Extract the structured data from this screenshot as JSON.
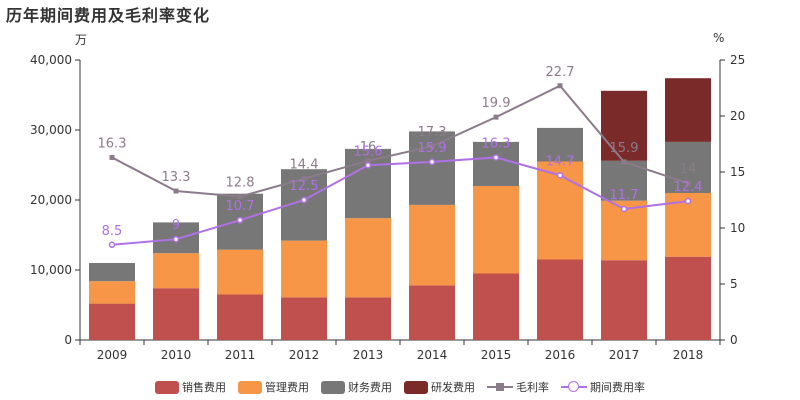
{
  "title": "历年期间费用及毛利率变化",
  "units": {
    "left": "万",
    "right": "%"
  },
  "legend": {
    "sales": "销售费用",
    "admin": "管理费用",
    "finance": "财务费用",
    "rd": "研发费用",
    "gross": "毛利率",
    "period": "期间费用率"
  },
  "colors": {
    "sales": "#c0504d",
    "admin": "#f79646",
    "finance": "#777777",
    "rd": "#7b2a2a",
    "gross": "#8c7b8b",
    "period": "#b070e6"
  },
  "chart_data": {
    "type": "bar",
    "stacked": true,
    "categories": [
      "2009",
      "2010",
      "2011",
      "2012",
      "2013",
      "2014",
      "2015",
      "2016",
      "2017",
      "2018"
    ],
    "ylim_left": [
      0,
      40000
    ],
    "yticks_left": [
      0,
      10000,
      20000,
      30000,
      40000
    ],
    "ytick_labels_left": [
      "0",
      "10,000",
      "20,000",
      "30,000",
      "40,000"
    ],
    "ylim_right": [
      0,
      25
    ],
    "yticks_right": [
      0,
      5,
      10,
      15,
      20,
      25
    ],
    "series": [
      {
        "name": "销售费用",
        "key": "sales",
        "values": [
          5200,
          7400,
          6500,
          6100,
          6100,
          7800,
          9500,
          11500,
          11400,
          11900
        ]
      },
      {
        "name": "管理费用",
        "key": "admin",
        "values": [
          3200,
          5000,
          6400,
          8100,
          11300,
          11500,
          12500,
          14000,
          8500,
          9100
        ]
      },
      {
        "name": "财务费用",
        "key": "finance",
        "values": [
          2600,
          4400,
          8000,
          10200,
          9900,
          10500,
          6300,
          4800,
          5700,
          7300
        ]
      },
      {
        "name": "研发费用",
        "key": "rd",
        "values": [
          0,
          0,
          0,
          0,
          0,
          0,
          0,
          0,
          10000,
          9100
        ]
      }
    ],
    "lines": [
      {
        "name": "毛利率",
        "key": "gross",
        "axis": "right",
        "marker": "square",
        "values": [
          16.3,
          13.3,
          12.8,
          14.4,
          16,
          17.3,
          19.9,
          22.7,
          15.9,
          14
        ],
        "labels": [
          "16.3",
          "13.3",
          "12.8",
          "14.4",
          "16",
          "17.3",
          "19.9",
          "22.7",
          "15.9",
          "14"
        ]
      },
      {
        "name": "期间费用率",
        "key": "period",
        "axis": "right",
        "marker": "circle",
        "values": [
          8.5,
          9,
          10.7,
          12.5,
          15.6,
          15.9,
          16.3,
          14.7,
          11.7,
          12.4
        ],
        "labels": [
          "8.5",
          "9",
          "10.7",
          "12.5",
          "15.6",
          "15.9",
          "16.3",
          "14.7",
          "11.7",
          "12.4"
        ]
      }
    ]
  }
}
